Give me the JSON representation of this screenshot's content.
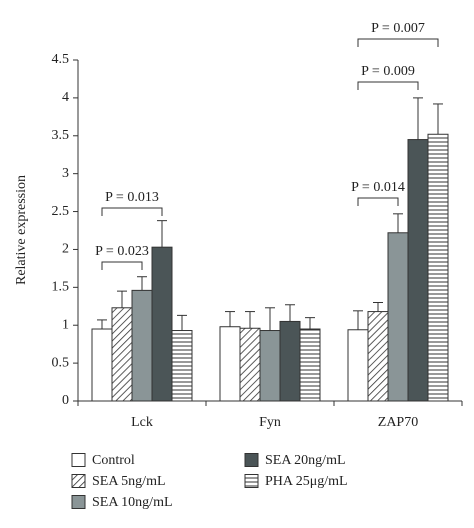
{
  "chart_data": {
    "type": "bar",
    "y_label": "Relative expression",
    "categories": [
      "Lck",
      "Fyn",
      "ZAP70"
    ],
    "series": [
      {
        "name": "Control",
        "color": "#ffffff",
        "hatch": "none",
        "values": [
          0.95,
          0.98,
          0.94
        ],
        "errors": [
          0.12,
          0.2,
          0.25
        ]
      },
      {
        "name": "SEA 5ng/mL",
        "color": "#ffffff",
        "hatch": "diagonal",
        "values": [
          1.23,
          0.96,
          1.18
        ],
        "errors": [
          0.22,
          0.22,
          0.12
        ]
      },
      {
        "name": "SEA 10ng/mL",
        "color": "#8a9597",
        "hatch": "none",
        "values": [
          1.46,
          0.93,
          2.22
        ],
        "errors": [
          0.18,
          0.3,
          0.25
        ]
      },
      {
        "name": "SEA 20ng/mL",
        "color": "#4b5557",
        "hatch": "none",
        "values": [
          2.03,
          1.05,
          3.45
        ],
        "errors": [
          0.35,
          0.22,
          0.55
        ]
      },
      {
        "name": "PHA 25μg/mL",
        "color": "#ffffff",
        "hatch": "horizontal",
        "values": [
          0.93,
          0.95,
          3.52
        ],
        "errors": [
          0.2,
          0.15,
          0.4
        ]
      }
    ],
    "ylim": [
      0,
      4.5
    ],
    "yticks": [
      0,
      0.5,
      1,
      1.5,
      2,
      2.5,
      3,
      3.5,
      4,
      4.5
    ],
    "annotations": [
      "P = 0.023",
      "P = 0.013",
      "P = 0.014",
      "P = 0.009",
      "P = 0.007"
    ]
  }
}
